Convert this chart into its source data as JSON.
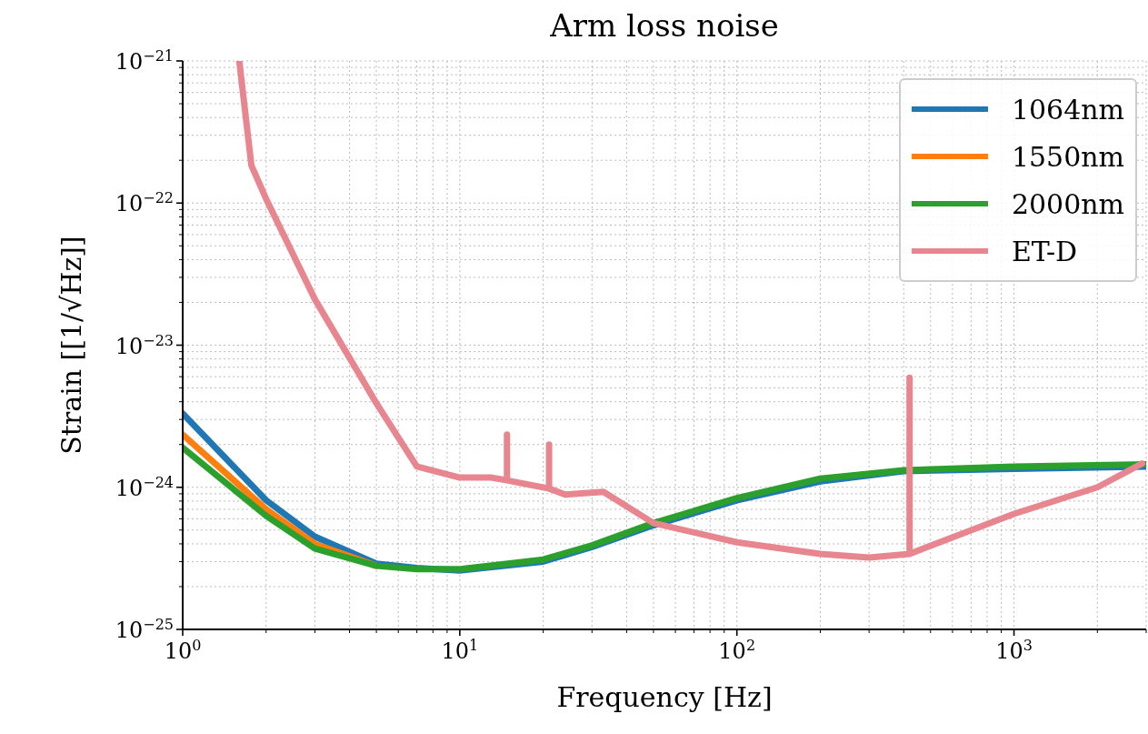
{
  "chart_data": {
    "type": "line",
    "title": "Arm loss noise",
    "xlabel": "Frequency [Hz]",
    "ylabel": "Strain [[1/√Hz]]",
    "log": "xy",
    "grid": true,
    "legend": "top right",
    "xlim": [
      1,
      3000
    ],
    "ylim": [
      1e-25,
      1e-21
    ],
    "xticks": [
      {
        "value": 1,
        "label": "10$^{0}$"
      },
      {
        "value": 2,
        "label": null
      },
      {
        "value": 3,
        "label": null
      },
      {
        "value": 4,
        "label": null
      },
      {
        "value": 5,
        "label": null
      },
      {
        "value": 6,
        "label": null
      },
      {
        "value": 7,
        "label": null
      },
      {
        "value": 8,
        "label": null
      },
      {
        "value": 9,
        "label": null
      },
      {
        "value": 10,
        "label": "10$^{1}$"
      },
      {
        "value": 20,
        "label": null
      },
      {
        "value": 30,
        "label": null
      },
      {
        "value": 40,
        "label": null
      },
      {
        "value": 50,
        "label": null
      },
      {
        "value": 60,
        "label": null
      },
      {
        "value": 70,
        "label": null
      },
      {
        "value": 80,
        "label": null
      },
      {
        "value": 90,
        "label": null
      },
      {
        "value": 100,
        "label": "10$^{2}$"
      },
      {
        "value": 200,
        "label": null
      },
      {
        "value": 300,
        "label": null
      },
      {
        "value": 400,
        "label": null
      },
      {
        "value": 500,
        "label": null
      },
      {
        "value": 600,
        "label": null
      },
      {
        "value": 700,
        "label": null
      },
      {
        "value": 800,
        "label": null
      },
      {
        "value": 900,
        "label": null
      },
      {
        "value": 1000,
        "label": "10$^{3}$"
      },
      {
        "value": 2000,
        "label": null
      },
      {
        "value": 3000,
        "label": null
      }
    ],
    "yticks": [
      {
        "value": 1e-25,
        "label": "10$^{−25}$"
      },
      {
        "value": 2e-25,
        "label": null
      },
      {
        "value": 3e-25,
        "label": null
      },
      {
        "value": 4e-25,
        "label": null
      },
      {
        "value": 5e-25,
        "label": null
      },
      {
        "value": 6e-25,
        "label": null
      },
      {
        "value": 7e-25,
        "label": null
      },
      {
        "value": 8e-25,
        "label": null
      },
      {
        "value": 9e-25,
        "label": null
      },
      {
        "value": 1e-24,
        "label": "10$^{−24}$"
      },
      {
        "value": 2e-24,
        "label": null
      },
      {
        "value": 3e-24,
        "label": null
      },
      {
        "value": 4e-24,
        "label": null
      },
      {
        "value": 5e-24,
        "label": null
      },
      {
        "value": 6e-24,
        "label": null
      },
      {
        "value": 7e-24,
        "label": null
      },
      {
        "value": 8e-24,
        "label": null
      },
      {
        "value": 9e-24,
        "label": null
      },
      {
        "value": 1e-23,
        "label": "10$^{−23}$"
      },
      {
        "value": 2e-23,
        "label": null
      },
      {
        "value": 3e-23,
        "label": null
      },
      {
        "value": 4e-23,
        "label": null
      },
      {
        "value": 5e-23,
        "label": null
      },
      {
        "value": 6e-23,
        "label": null
      },
      {
        "value": 7e-23,
        "label": null
      },
      {
        "value": 8e-23,
        "label": null
      },
      {
        "value": 9e-23,
        "label": null
      },
      {
        "value": 1e-22,
        "label": "10$^{−22}$"
      },
      {
        "value": 2e-22,
        "label": null
      },
      {
        "value": 3e-22,
        "label": null
      },
      {
        "value": 4e-22,
        "label": null
      },
      {
        "value": 5e-22,
        "label": null
      },
      {
        "value": 6e-22,
        "label": null
      },
      {
        "value": 7e-22,
        "label": null
      },
      {
        "value": 8e-22,
        "label": null
      },
      {
        "value": 9e-22,
        "label": null
      },
      {
        "value": 1e-21,
        "label": "10$^{−21}$"
      }
    ],
    "series": [
      {
        "name": "1064nm",
        "color": "#1f77b4",
        "x": [
          1,
          2,
          3,
          5,
          7,
          10,
          20,
          30,
          50,
          100,
          200,
          400,
          1000,
          3000
        ],
        "values": [
          3.3e-24,
          8.1e-25,
          4.5e-25,
          2.9e-25,
          2.7e-25,
          2.6e-25,
          3e-25,
          3.8e-25,
          5.4e-25,
          8.1e-25,
          1.1e-24,
          1.3e-24,
          1.35e-24,
          1.4e-24
        ]
      },
      {
        "name": "1550nm",
        "color": "#ff7f0e",
        "x": [
          1,
          2,
          3,
          5
        ],
        "values": [
          2.35e-24,
          7e-25,
          4e-25,
          2.8e-25
        ]
      },
      {
        "name": "2000nm",
        "color": "#2ca02c",
        "x": [
          1,
          2,
          3,
          5,
          7,
          10,
          20,
          30,
          50,
          100,
          200,
          400,
          1000,
          3000
        ],
        "values": [
          1.9e-24,
          6.3e-25,
          3.7e-25,
          2.8e-25,
          2.65e-25,
          2.65e-25,
          3.1e-25,
          3.9e-25,
          5.6e-25,
          8.4e-25,
          1.15e-24,
          1.32e-24,
          1.4e-24,
          1.45e-24
        ]
      },
      {
        "name": "ET-D",
        "color": "#e8868f",
        "x": [
          1.6,
          1.77,
          2,
          3,
          5,
          7,
          10,
          13,
          14.8,
          14.8,
          14.8,
          21,
          21,
          21,
          24,
          33,
          50,
          100,
          200,
          300,
          420,
          420,
          420,
          1000,
          2000,
          2900
        ],
        "values": [
          1e-21,
          1.84e-22,
          1.07e-22,
          2.1e-23,
          3.9e-24,
          1.4e-24,
          1.17e-24,
          1.17e-24,
          1.12e-24,
          2.35e-24,
          1.12e-24,
          9.8e-25,
          2e-24,
          9.8e-25,
          8.9e-25,
          9.3e-25,
          5.6e-25,
          4.1e-25,
          3.4e-25,
          3.2e-25,
          3.4e-25,
          5.9e-24,
          3.4e-25,
          6.5e-25,
          1e-24,
          1.47e-24
        ]
      }
    ]
  }
}
